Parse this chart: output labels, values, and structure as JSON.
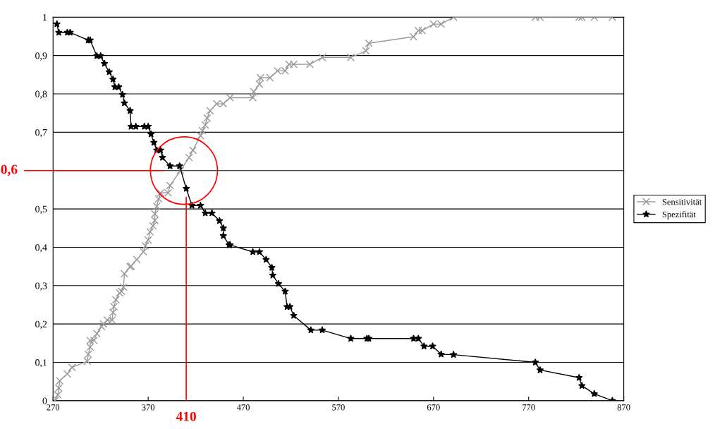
{
  "chart_data": {
    "type": "line",
    "xlim": [
      270,
      870
    ],
    "xticks": [
      270,
      370,
      470,
      570,
      670,
      770,
      870
    ],
    "ylim": [
      0,
      1
    ],
    "yticks": [
      0,
      {
        "value": 0.1,
        "label": "0,1"
      },
      {
        "value": 0.2,
        "label": "0,2"
      },
      {
        "value": 0.3,
        "label": "0,3"
      },
      {
        "value": 0.4,
        "label": "0,4"
      },
      {
        "value": 0.5,
        "label": "0,5"
      },
      {
        "value": 0.6,
        "label": null
      },
      {
        "value": 0.7,
        "label": "0,7"
      },
      {
        "value": 0.8,
        "label": "0,8"
      },
      {
        "value": 0.9,
        "label": "0,9"
      },
      1
    ],
    "grid": "y",
    "legend": "right",
    "line_style": "solid",
    "series": [
      {
        "name": "Sensitivität",
        "color": "#999999",
        "marker": "cross",
        "x": [
          272,
          275,
          276,
          277,
          285,
          290,
          306,
          307,
          309,
          309,
          313,
          316,
          321,
          323,
          327,
          332,
          333,
          334,
          336,
          340,
          342,
          344,
          345,
          351,
          352,
          358,
          365,
          367,
          370,
          372,
          375,
          377,
          377,
          379,
          381,
          383,
          391,
          393,
          404,
          413,
          417,
          425,
          427,
          430,
          432,
          435,
          442,
          449,
          456,
          480,
          481,
          487,
          488,
          498,
          506,
          514,
          518,
          523,
          540,
          553,
          583,
          599,
          602,
          649,
          654,
          658,
          670,
          678,
          691,
          777,
          782,
          823,
          826,
          839,
          858
        ],
        "values": [
          0,
          0.015,
          0.033,
          0.052,
          0.07,
          0.087,
          0.103,
          0.121,
          0.14,
          0.157,
          0.157,
          0.175,
          0.193,
          0.2,
          0.21,
          0.21,
          0.23,
          0.245,
          0.263,
          0.281,
          0.285,
          0.296,
          0.331,
          0.349,
          0.351,
          0.368,
          0.388,
          0.404,
          0.419,
          0.44,
          0.456,
          0.47,
          0.487,
          0.507,
          0.526,
          0.542,
          0.542,
          0.561,
          0.6,
          0.634,
          0.653,
          0.691,
          0.704,
          0.719,
          0.737,
          0.756,
          0.774,
          0.774,
          0.79,
          0.79,
          0.806,
          0.825,
          0.842,
          0.842,
          0.86,
          0.86,
          0.877,
          0.877,
          0.877,
          0.895,
          0.895,
          0.912,
          0.932,
          0.949,
          0.965,
          0.965,
          0.982,
          0.982,
          1,
          1,
          1,
          1,
          1,
          1,
          1
        ]
      },
      {
        "name": "Spezifität",
        "color": "#000000",
        "marker": "star",
        "x": [
          274,
          276,
          285,
          288,
          307,
          309,
          316,
          320,
          324,
          329,
          333,
          335,
          339,
          343,
          345,
          351,
          352,
          357,
          366,
          370,
          373,
          376,
          379,
          383,
          385,
          393,
          403,
          410,
          416,
          425,
          430,
          437,
          445,
          449,
          449,
          455,
          456,
          480,
          487,
          494,
          500,
          501,
          507,
          514,
          516,
          519,
          523,
          541,
          553,
          583,
          600,
          602,
          649,
          654,
          660,
          669,
          678,
          691,
          777,
          782,
          823,
          826,
          839,
          858
        ],
        "values": [
          0.982,
          0.96,
          0.96,
          0.96,
          0.94,
          0.94,
          0.899,
          0.899,
          0.879,
          0.857,
          0.838,
          0.818,
          0.818,
          0.798,
          0.776,
          0.756,
          0.715,
          0.715,
          0.715,
          0.715,
          0.695,
          0.673,
          0.653,
          0.653,
          0.634,
          0.612,
          0.612,
          0.553,
          0.509,
          0.509,
          0.489,
          0.489,
          0.469,
          0.45,
          0.43,
          0.406,
          0.406,
          0.388,
          0.388,
          0.368,
          0.347,
          0.327,
          0.305,
          0.285,
          0.245,
          0.245,
          0.222,
          0.184,
          0.184,
          0.162,
          0.162,
          0.162,
          0.162,
          0.162,
          0.142,
          0.142,
          0.121,
          0.12,
          0.1,
          0.08,
          0.06,
          0.039,
          0.018,
          0
        ]
      }
    ],
    "ref_lines": [
      {
        "axis": "y",
        "value": 0.6,
        "label": "0,6",
        "color": "#ff0000"
      },
      {
        "axis": "x",
        "value": 410,
        "label": "410",
        "color": "#ff0000"
      }
    ]
  }
}
